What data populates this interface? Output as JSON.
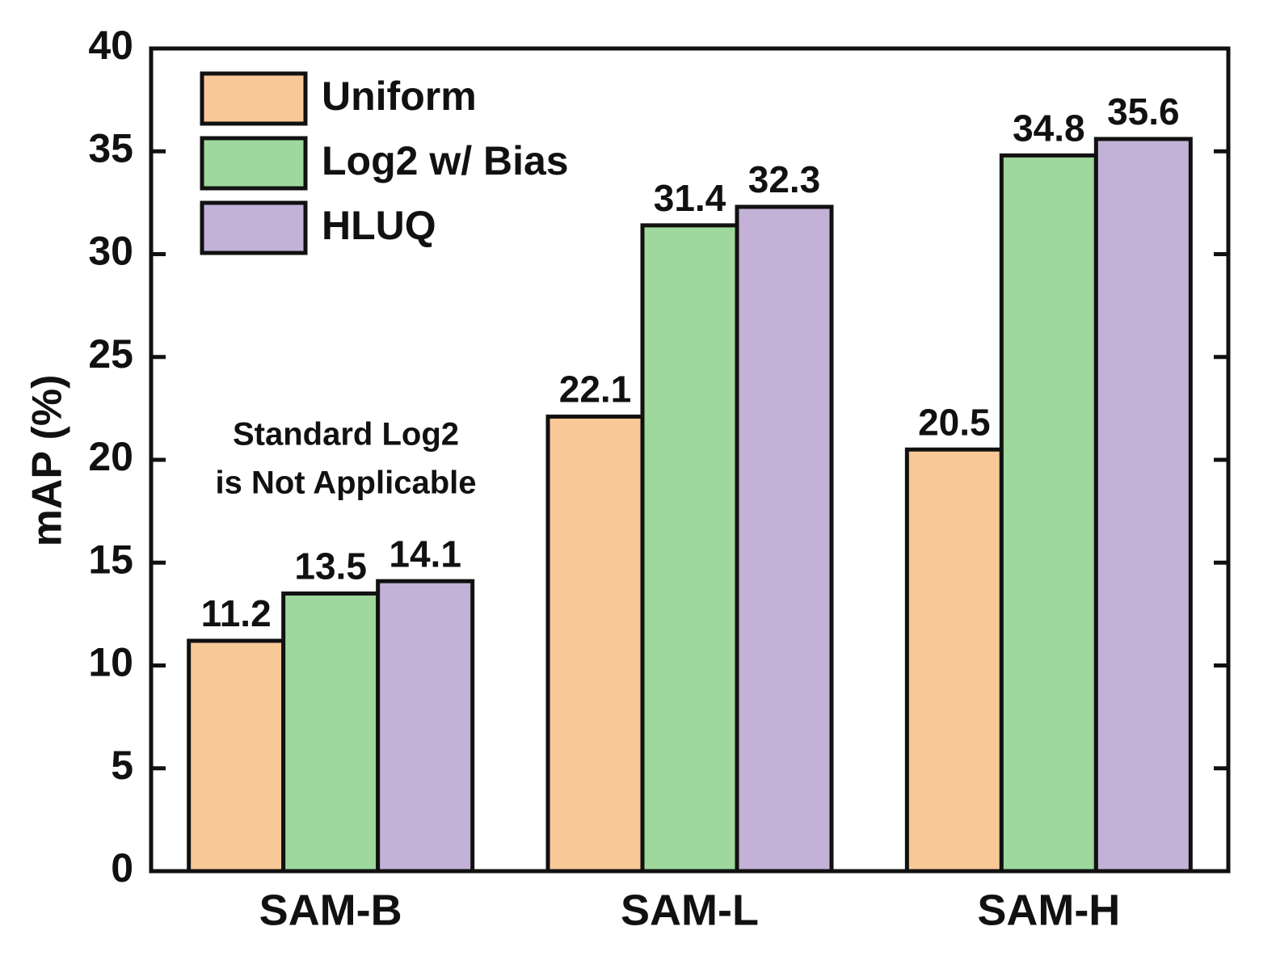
{
  "chart_data": {
    "type": "bar",
    "y_label": "mAP (%)",
    "categories": [
      "SAM-B",
      "SAM-L",
      "SAM-H"
    ],
    "series": [
      {
        "name": "Uniform",
        "color": "#f9c897",
        "values": [
          11.2,
          22.1,
          20.5
        ]
      },
      {
        "name": "Log2 w/ Bias",
        "color": "#9ed89c",
        "values": [
          13.5,
          31.4,
          34.8
        ]
      },
      {
        "name": "HLUQ",
        "color": "#c3b1d7",
        "values": [
          14.1,
          32.3,
          35.6
        ]
      }
    ],
    "annotation": [
      "Standard Log2",
      "is Not Applicable"
    ],
    "ylim": [
      0,
      40
    ],
    "yticks": [
      0,
      5,
      10,
      15,
      20,
      25,
      30,
      35,
      40
    ],
    "legend": "upper left"
  }
}
